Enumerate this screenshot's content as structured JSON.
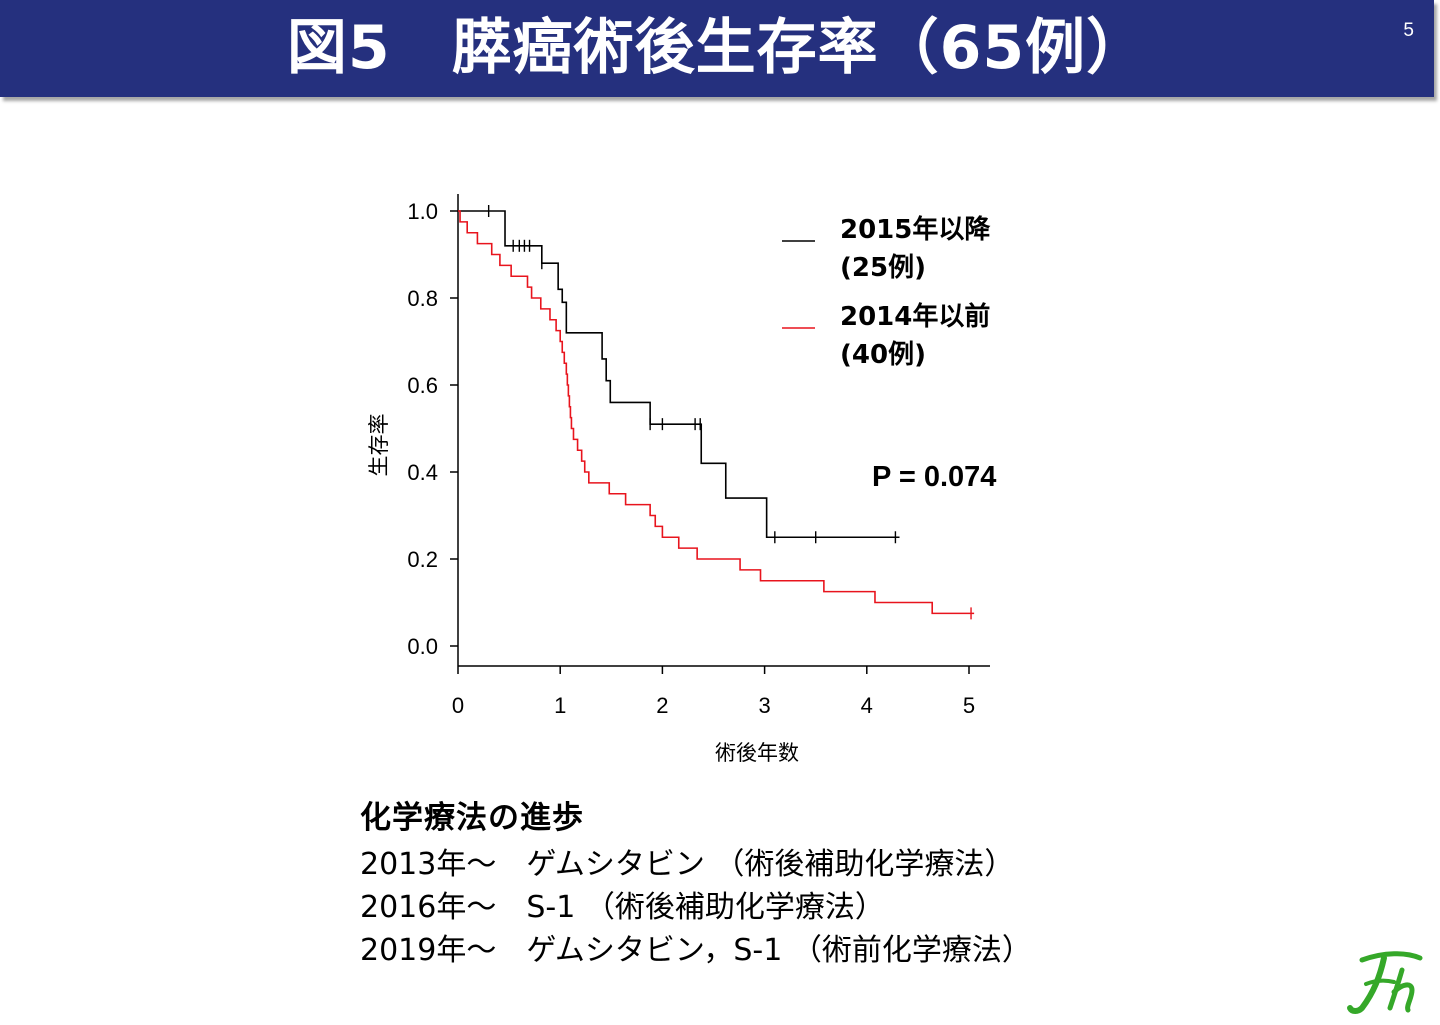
{
  "header": {
    "title": "図5　膵癌術後生存率（65例）",
    "page_number": "5"
  },
  "chart_data": {
    "type": "line",
    "title": "",
    "xlabel": "術後年数",
    "ylabel": "生存率",
    "xlim": [
      0,
      5.2
    ],
    "ylim": [
      0,
      1.0
    ],
    "x_ticks": [
      "0",
      "1",
      "2",
      "3",
      "4",
      "5"
    ],
    "y_ticks": [
      "0.0",
      "0.2",
      "0.4",
      "0.6",
      "0.8",
      "1.0"
    ],
    "legend_position": "top-right",
    "annotation": "P = 0.074",
    "series": [
      {
        "name": "2015年以降\n(25例)",
        "legend_line1": "2015年以降",
        "legend_line2": "(25例)",
        "color": "#000000",
        "steps": [
          [
            0,
            1.0
          ],
          [
            0.46,
            0.92
          ],
          [
            0.82,
            0.88
          ],
          [
            0.98,
            0.82
          ],
          [
            1.02,
            0.79
          ],
          [
            1.06,
            0.72
          ],
          [
            1.41,
            0.66
          ],
          [
            1.45,
            0.61
          ],
          [
            1.49,
            0.56
          ],
          [
            1.88,
            0.51
          ],
          [
            2.38,
            0.42
          ],
          [
            2.62,
            0.34
          ],
          [
            3.02,
            0.25
          ]
        ],
        "end_x": 4.32,
        "censored": [
          0.3,
          0.54,
          0.6,
          0.65,
          0.7,
          0.82,
          1.88,
          2.0,
          2.32,
          2.37,
          3.1,
          3.5,
          4.28
        ]
      },
      {
        "name": "2014年以前\n(40例)",
        "legend_line1": "2014年以前",
        "legend_line2": "(40例)",
        "color": "#e8141d",
        "steps": [
          [
            0,
            1.0
          ],
          [
            0.02,
            0.975
          ],
          [
            0.09,
            0.95
          ],
          [
            0.19,
            0.925
          ],
          [
            0.33,
            0.9
          ],
          [
            0.41,
            0.875
          ],
          [
            0.52,
            0.85
          ],
          [
            0.68,
            0.825
          ],
          [
            0.72,
            0.8
          ],
          [
            0.81,
            0.775
          ],
          [
            0.9,
            0.75
          ],
          [
            0.96,
            0.725
          ],
          [
            1.0,
            0.7
          ],
          [
            1.02,
            0.675
          ],
          [
            1.04,
            0.65
          ],
          [
            1.06,
            0.625
          ],
          [
            1.07,
            0.6
          ],
          [
            1.08,
            0.575
          ],
          [
            1.09,
            0.55
          ],
          [
            1.1,
            0.525
          ],
          [
            1.11,
            0.5
          ],
          [
            1.13,
            0.475
          ],
          [
            1.17,
            0.45
          ],
          [
            1.21,
            0.425
          ],
          [
            1.24,
            0.4
          ],
          [
            1.28,
            0.375
          ],
          [
            1.48,
            0.35
          ],
          [
            1.64,
            0.325
          ],
          [
            1.88,
            0.3
          ],
          [
            1.93,
            0.275
          ],
          [
            2.0,
            0.25
          ],
          [
            2.16,
            0.225
          ],
          [
            2.34,
            0.2
          ],
          [
            2.76,
            0.175
          ],
          [
            2.96,
            0.15
          ],
          [
            3.58,
            0.125
          ],
          [
            4.08,
            0.1
          ],
          [
            4.64,
            0.075
          ]
        ],
        "end_x": 5.05,
        "censored": [
          5.02
        ]
      }
    ]
  },
  "notes": {
    "heading": "化学療法の進歩",
    "lines": [
      "2013年～　ゲムシタビン （術後補助化学療法）",
      "2016年～　S-1 （術後補助化学療法）",
      "2019年～　ゲムシタビン，S-1 （術前化学療法）"
    ]
  },
  "logo": {
    "icon": "fh-logo-icon",
    "color": "#35a829"
  }
}
